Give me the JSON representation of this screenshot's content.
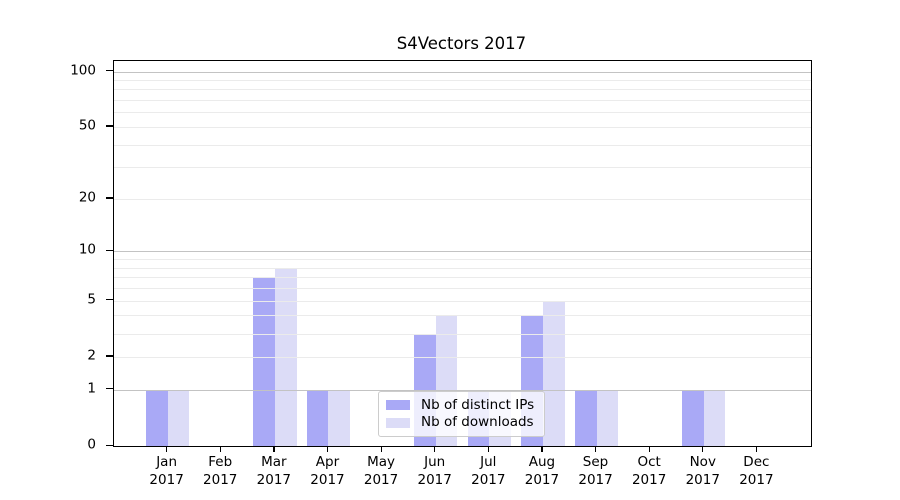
{
  "figure": {
    "title": "S4Vectors 2017"
  },
  "chart_data": {
    "type": "bar",
    "title": "S4Vectors 2017",
    "categories": [
      "Jan 2017",
      "Feb 2017",
      "Mar 2017",
      "Apr 2017",
      "May 2017",
      "Jun 2017",
      "Jul 2017",
      "Aug 2017",
      "Sep 2017",
      "Oct 2017",
      "Nov 2017",
      "Dec 2017"
    ],
    "series": [
      {
        "name": "Nb of distinct IPs",
        "color": "#a9a9f6",
        "values": [
          1,
          0,
          7,
          1,
          0,
          3,
          1,
          4,
          1,
          0,
          1,
          0
        ]
      },
      {
        "name": "Nb of downloads",
        "color": "#dcdcf7",
        "values": [
          1,
          0,
          8,
          1,
          0,
          4,
          1,
          5,
          1,
          0,
          1,
          0
        ]
      }
    ],
    "xlabel": "",
    "ylabel": "",
    "yscale": "log1p",
    "ylim": [
      0,
      114
    ],
    "yticks": [
      0,
      1,
      2,
      5,
      10,
      20,
      50,
      100
    ],
    "grid": {
      "on": true,
      "major": [
        1,
        10,
        100
      ],
      "minor": [
        2,
        3,
        4,
        5,
        6,
        7,
        8,
        9,
        20,
        30,
        40,
        50,
        60,
        70,
        80,
        90
      ]
    },
    "legend": {
      "position": "lower center inside",
      "entries": [
        "Nb of distinct IPs",
        "Nb of downloads"
      ]
    },
    "colors": {
      "grid_major": "#c3c3c3",
      "grid_minor": "#ebebeb",
      "axis": "#000000",
      "background": "#ffffff",
      "legend_border": "#cccccc"
    }
  }
}
